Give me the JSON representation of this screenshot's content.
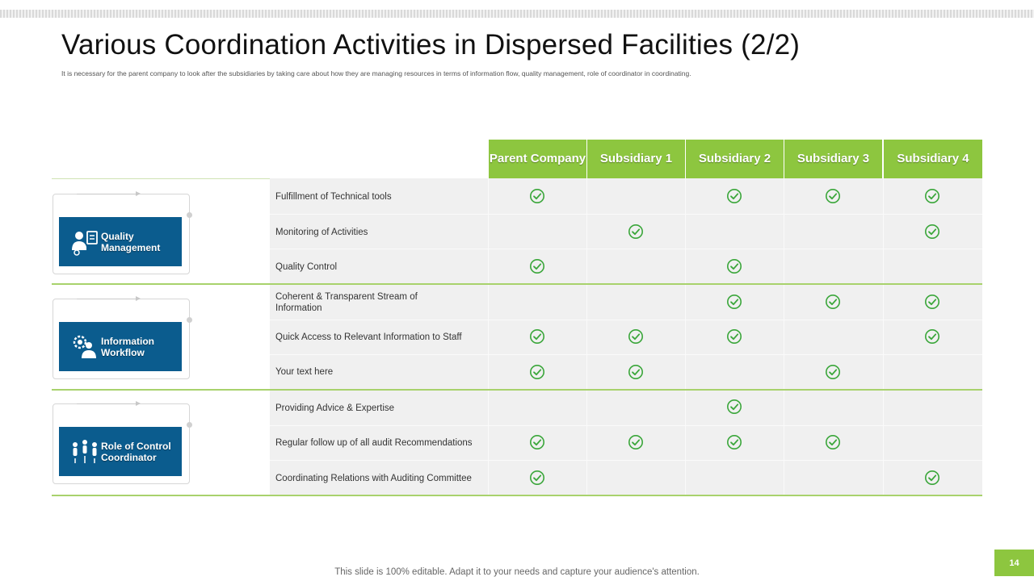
{
  "slide": {
    "title": "Various Coordination Activities in Dispersed Facilities (2/2)",
    "subtitle": "It is necessary for the parent company to look  after the subsidiaries by taking  care about how  they are managing  resources in terms of information flow, quality management,  role of coordinator in coordinating.",
    "footer": "This slide is 100% editable. Adapt it to your needs and capture your audience's attention.",
    "page_number": "14"
  },
  "table": {
    "columns": [
      "Parent Company",
      "Subsidiary 1",
      "Subsidiary 2",
      "Subsidiary 3",
      "Subsidiary 4"
    ],
    "groups": [
      {
        "label": "Quality Management",
        "icon": "team-quality-icon",
        "rows": [
          {
            "activity": "Fulfillment of Technical tools",
            "checks": [
              true,
              false,
              true,
              true,
              true
            ]
          },
          {
            "activity": "Monitoring of Activities",
            "checks": [
              false,
              true,
              false,
              false,
              true
            ]
          },
          {
            "activity": "Quality Control",
            "checks": [
              true,
              false,
              true,
              false,
              false
            ]
          }
        ]
      },
      {
        "label": "Information Workflow",
        "icon": "gear-person-icon",
        "rows": [
          {
            "activity": "Coherent & Transparent Stream of Information",
            "checks": [
              false,
              false,
              true,
              true,
              true
            ]
          },
          {
            "activity": "Quick Access to Relevant Information to Staff",
            "checks": [
              true,
              true,
              true,
              false,
              true
            ]
          },
          {
            "activity": "Your text here",
            "checks": [
              true,
              true,
              false,
              true,
              false
            ]
          }
        ]
      },
      {
        "label": "Role of Control Coordinator",
        "icon": "people-network-icon",
        "rows": [
          {
            "activity": "Providing Advice  & Expertise",
            "checks": [
              false,
              false,
              true,
              false,
              false
            ]
          },
          {
            "activity": "Regular follow up of all audit Recommendations",
            "checks": [
              true,
              true,
              true,
              true,
              false
            ]
          },
          {
            "activity": "Coordinating Relations with Auditing Committee",
            "checks": [
              true,
              false,
              false,
              false,
              true
            ]
          }
        ]
      }
    ]
  },
  "colors": {
    "accent_green": "#8dc63f",
    "check_green": "#3aa63a",
    "card_blue": "#0b5c8e"
  }
}
